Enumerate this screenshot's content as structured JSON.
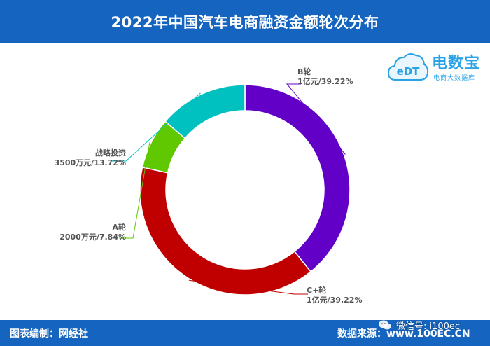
{
  "header": {
    "title": "2022年中国汽车电商融资金额轮次分布"
  },
  "footer": {
    "credit": "图表编制：网经社",
    "source": "数据来源：www.100EC.CN"
  },
  "watermark": {
    "wechat": "微信号: i100ec"
  },
  "logo": {
    "brand": "电数宝",
    "tagline": "电商大数据库",
    "cloud_text": "eDT"
  },
  "chart_data": {
    "type": "pie",
    "donut": true,
    "start_angle_deg": 90,
    "direction": "clockwise",
    "slices": [
      {
        "name": "B轮",
        "value_text": "1亿元",
        "percent": 39.22,
        "percent_text": "39.22%",
        "color": "#6200c8"
      },
      {
        "name": "C+轮",
        "value_text": "1亿元",
        "percent": 39.22,
        "percent_text": "39.22%",
        "color": "#c00000"
      },
      {
        "name": "A轮",
        "value_text": "2000万元",
        "percent": 7.84,
        "percent_text": "7.84%",
        "color": "#5fc800"
      },
      {
        "name": "战略投资",
        "value_text": "3500万元",
        "percent": 13.72,
        "percent_text": "13.72%",
        "color": "#00c0c0"
      }
    ]
  }
}
